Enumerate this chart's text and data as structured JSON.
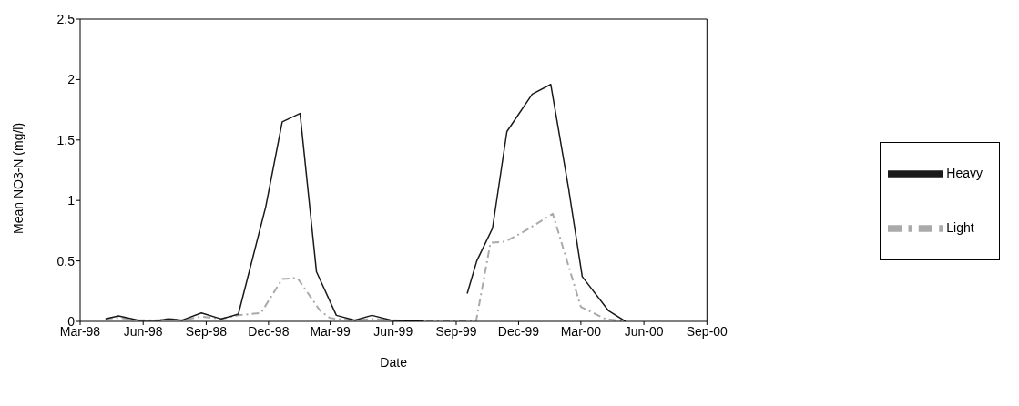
{
  "chart_data": {
    "type": "line",
    "xlabel": "Date",
    "ylabel": "Mean NO3-N (mg/l)",
    "xlim": [
      "1998-03-01",
      "2000-09-01"
    ],
    "xticks": [
      {
        "value": "1998-03-01",
        "label": "Mar-98"
      },
      {
        "value": "1998-06-01",
        "label": "Jun-98"
      },
      {
        "value": "1998-09-01",
        "label": "Sep-98"
      },
      {
        "value": "1998-12-01",
        "label": "Dec-98"
      },
      {
        "value": "1999-03-01",
        "label": "Mar-99"
      },
      {
        "value": "1999-06-01",
        "label": "Jun-99"
      },
      {
        "value": "1999-09-01",
        "label": "Sep-99"
      },
      {
        "value": "1999-12-01",
        "label": "Dec-99"
      },
      {
        "value": "2000-03-01",
        "label": "Mar-00"
      },
      {
        "value": "2000-06-01",
        "label": "Jun-00"
      },
      {
        "value": "2000-09-01",
        "label": "Sep-00"
      }
    ],
    "ylim": [
      0,
      2.5
    ],
    "yticks": [
      0,
      0.5,
      1,
      1.5,
      2,
      2.5
    ],
    "grid": false,
    "legend": "right",
    "marker": "none",
    "series": [
      {
        "name": "Light",
        "color": "#aaaaaa",
        "line_style": "dashed",
        "x": [
          "1998-04-07",
          "1998-04-26",
          "1998-05-25",
          "1998-06-25",
          "1998-07-08",
          "1998-07-28",
          "1998-08-25",
          "1998-09-23",
          "1998-10-18",
          "1998-11-20",
          "1998-12-21",
          "1999-01-12",
          "1999-02-14",
          "1999-02-28",
          "1999-03-10",
          "1999-04-06",
          "1999-05-01",
          "1999-05-29",
          "1999-07-16",
          "1999-09-30",
          "1999-10-21",
          "1999-11-12",
          "1999-12-11",
          "2000-01-20",
          "2000-03-01",
          "2000-04-06",
          "2000-05-05"
        ],
        "values": [
          0.02,
          0.03,
          0.01,
          0.01,
          0.02,
          0.01,
          0.04,
          0.02,
          0.05,
          0.07,
          0.35,
          0.36,
          0.09,
          0.03,
          0.02,
          0.01,
          0.02,
          0.01,
          0,
          0,
          0.65,
          0.66,
          0.75,
          0.89,
          0.12,
          0.02,
          0
        ]
      },
      {
        "name": "Heavy",
        "color": "#1a1a1a",
        "line_style": "solid",
        "x": [
          "1998-04-07",
          "1998-04-26",
          "1998-05-25",
          "1998-06-25",
          "1998-07-08",
          "1998-07-28",
          "1998-08-25",
          "1998-09-23",
          "1998-10-18",
          "1998-11-27",
          "1998-12-21",
          "1999-01-16",
          "1999-02-09",
          "1999-03-10",
          "1999-04-06",
          "1999-05-01",
          "1999-05-29",
          "1999-07-16",
          "1999-08-15",
          "1999-09-17",
          "1999-10-01",
          "1999-10-24",
          "1999-11-14",
          "1999-12-21",
          "2000-01-17",
          "2000-02-12",
          "2000-03-03",
          "2000-04-10",
          "2000-05-05"
        ],
        "values": [
          0.02,
          0.045,
          0.01,
          0.01,
          0.02,
          0.01,
          0.07,
          0.02,
          0.06,
          0.95,
          1.65,
          1.72,
          0.41,
          0.05,
          0.01,
          0.05,
          0.01,
          0,
          null,
          0.23,
          0.5,
          0.77,
          1.57,
          1.88,
          1.96,
          1.1,
          0.37,
          0.09,
          0
        ]
      }
    ]
  }
}
